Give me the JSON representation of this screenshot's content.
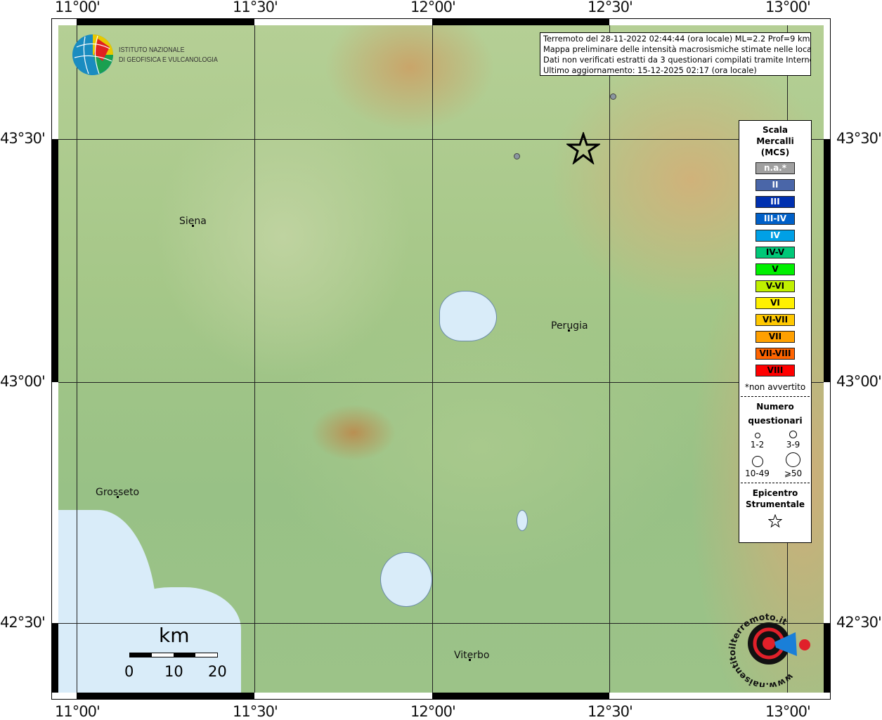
{
  "axes": {
    "lon_labels": [
      "11°00'",
      "11°30'",
      "12°00'",
      "12°30'",
      "13°00'"
    ],
    "lat_labels": [
      "43°30'",
      "43°00'",
      "42°30'"
    ]
  },
  "logo": {
    "line1": "ISTITUTO NAZIONALE",
    "line2": "DI GEOFISICA E VULCANOLOGIA"
  },
  "info": {
    "line1": "Terremoto del 28-11-2022 02:44:44 (ora locale) ML=2.2 Prof=9 km",
    "line2": "Mappa preliminare delle intensità macrosismiche stimate nelle località",
    "line3": "Dati non verificati estratti da 3 questionari compilati tramite Internet.",
    "line4": "Ultimo aggiornamento: 15-12-2025 02:17 (ora locale)"
  },
  "cities": [
    {
      "name": "Siena"
    },
    {
      "name": "Perugia"
    },
    {
      "name": "Grosseto"
    },
    {
      "name": "Viterbo"
    }
  ],
  "legend": {
    "title1": "Scala",
    "title2": "Mercalli",
    "title3": "(MCS)",
    "scale": [
      {
        "label": "n.a.*",
        "color": "#a0a0a0",
        "text": "#fff"
      },
      {
        "label": "II",
        "color": "#4a66a8",
        "text": "#fff"
      },
      {
        "label": "III",
        "color": "#0030b0",
        "text": "#fff"
      },
      {
        "label": "III-IV",
        "color": "#0060c8",
        "text": "#fff"
      },
      {
        "label": "IV",
        "color": "#00a0e6",
        "text": "#fff"
      },
      {
        "label": "IV-V",
        "color": "#00c878",
        "text": "#000"
      },
      {
        "label": "V",
        "color": "#00f000",
        "text": "#000"
      },
      {
        "label": "V-VI",
        "color": "#c0f000",
        "text": "#000"
      },
      {
        "label": "VI",
        "color": "#fff000",
        "text": "#000"
      },
      {
        "label": "VI-VII",
        "color": "#ffc800",
        "text": "#000"
      },
      {
        "label": "VII",
        "color": "#ffa000",
        "text": "#000"
      },
      {
        "label": "VII-VIII",
        "color": "#ff6400",
        "text": "#000"
      },
      {
        "label": "VIII",
        "color": "#ff0000",
        "text": "#000"
      }
    ],
    "note": "*non avvertito",
    "questionnaires_title1": "Numero",
    "questionnaires_title2": "questionari",
    "sizes": [
      "1-2",
      "3-9",
      "10-49",
      "⩾50"
    ],
    "epicenter_title1": "Epicentro",
    "epicenter_title2": "Strumentale"
  },
  "scalebar": {
    "unit": "km",
    "labels": [
      "0",
      "10",
      "20"
    ]
  },
  "badge": {
    "text": "www.haisentitoilterremoto.it"
  }
}
